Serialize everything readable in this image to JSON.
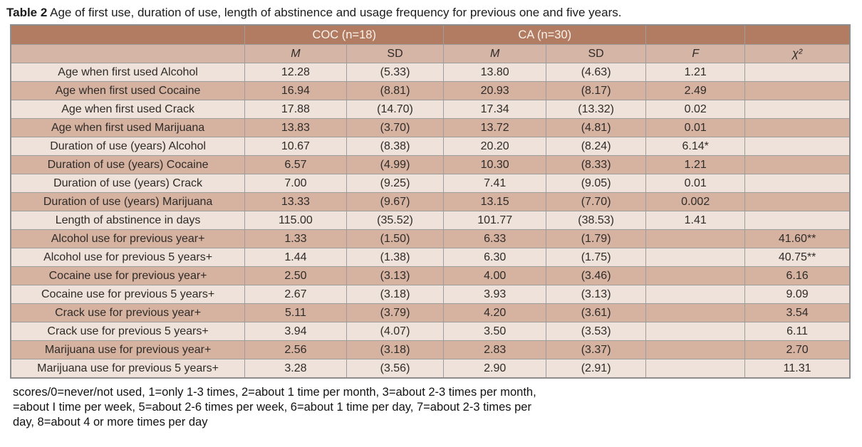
{
  "title": {
    "label": "Table 2",
    "text": "Age of first use, duration of use, length of abstinence and usage frequency for previous one and five years."
  },
  "colors": {
    "header_bg": "#b27c62",
    "header_text": "#faf2ec",
    "subheader_bg": "#d4b5a6",
    "row_light": "#eee2da",
    "row_dark": "#d6b3a1",
    "grid": "#9d9d9d"
  },
  "table": {
    "group_headers": {
      "coc": "COC (n=18)",
      "ca": "CA (n=30)"
    },
    "col_headers": {
      "m_coc": "M",
      "sd_coc": "SD",
      "m_ca": "M",
      "sd_ca": "SD",
      "f": "F",
      "chi2": "χ²"
    },
    "rows": [
      {
        "label": "Age when first used Alcohol",
        "coc_m": "12.28",
        "coc_sd": "(5.33)",
        "ca_m": "13.80",
        "ca_sd": "(4.63)",
        "f": "1.21",
        "chi2": ""
      },
      {
        "label": "Age when first used Cocaine",
        "coc_m": "16.94",
        "coc_sd": "(8.81)",
        "ca_m": "20.93",
        "ca_sd": "(8.17)",
        "f": "2.49",
        "chi2": ""
      },
      {
        "label": "Age when first used Crack",
        "coc_m": "17.88",
        "coc_sd": "(14.70)",
        "ca_m": "17.34",
        "ca_sd": "(13.32)",
        "f": "0.02",
        "chi2": ""
      },
      {
        "label": "Age when first used Marijuana",
        "coc_m": "13.83",
        "coc_sd": "(3.70)",
        "ca_m": "13.72",
        "ca_sd": "(4.81)",
        "f": "0.01",
        "chi2": ""
      },
      {
        "label": "Duration of use (years) Alcohol",
        "coc_m": "10.67",
        "coc_sd": "(8.38)",
        "ca_m": "20.20",
        "ca_sd": "(8.24)",
        "f": "6.14*",
        "chi2": ""
      },
      {
        "label": "Duration of use (years) Cocaine",
        "coc_m": "6.57",
        "coc_sd": "(4.99)",
        "ca_m": "10.30",
        "ca_sd": "(8.33)",
        "f": "1.21",
        "chi2": ""
      },
      {
        "label": "Duration of use (years) Crack",
        "coc_m": "7.00",
        "coc_sd": "(9.25)",
        "ca_m": "7.41",
        "ca_sd": "(9.05)",
        "f": "0.01",
        "chi2": ""
      },
      {
        "label": "Duration of use (years) Marijuana",
        "coc_m": "13.33",
        "coc_sd": "(9.67)",
        "ca_m": "13.15",
        "ca_sd": "(7.70)",
        "f": "0.002",
        "chi2": ""
      },
      {
        "label": "Length of abstinence in days",
        "coc_m": "115.00",
        "coc_sd": "(35.52)",
        "ca_m": "101.77",
        "ca_sd": "(38.53)",
        "f": "1.41",
        "chi2": ""
      },
      {
        "label": "Alcohol use for previous year+",
        "coc_m": "1.33",
        "coc_sd": "(1.50)",
        "ca_m": "6.33",
        "ca_sd": "(1.79)",
        "f": "",
        "chi2": "41.60**"
      },
      {
        "label": "Alcohol use for  previous 5 years+",
        "coc_m": "1.44",
        "coc_sd": "(1.38)",
        "ca_m": "6.30",
        "ca_sd": "(1.75)",
        "f": "",
        "chi2": "40.75**"
      },
      {
        "label": "Cocaine use for previous year+",
        "coc_m": "2.50",
        "coc_sd": "(3.13)",
        "ca_m": "4.00",
        "ca_sd": "(3.46)",
        "f": "",
        "chi2": "6.16"
      },
      {
        "label": "Cocaine use for previous 5 years+",
        "coc_m": "2.67",
        "coc_sd": "(3.18)",
        "ca_m": "3.93",
        "ca_sd": "(3.13)",
        "f": "",
        "chi2": "9.09"
      },
      {
        "label": "Crack use for previous year+",
        "coc_m": "5.11",
        "coc_sd": "(3.79)",
        "ca_m": "4.20",
        "ca_sd": "(3.61)",
        "f": "",
        "chi2": "3.54"
      },
      {
        "label": "Crack use for previous 5 years+",
        "coc_m": "3.94",
        "coc_sd": "(4.07)",
        "ca_m": "3.50",
        "ca_sd": "(3.53)",
        "f": "",
        "chi2": "6.11"
      },
      {
        "label": "Marijuana use for previous year+",
        "coc_m": "2.56",
        "coc_sd": "(3.18)",
        "ca_m": "2.83",
        "ca_sd": "(3.37)",
        "f": "",
        "chi2": "2.70"
      },
      {
        "label": "Marijuana use for previous 5 years+",
        "coc_m": "3.28",
        "coc_sd": "(3.56)",
        "ca_m": "2.90",
        "ca_sd": "(2.91)",
        "f": "",
        "chi2": "11.31"
      }
    ]
  },
  "footnote": {
    "line1": "scores/0=never/not used, 1=only 1-3 times, 2=about 1 time per month, 3=about 2-3 times per month,",
    "line2": "=about I time per week, 5=about 2-6 times per week, 6=about 1 time per day, 7=about 2-3 times per",
    "line3": "day, 8=about 4 or more times per day"
  }
}
